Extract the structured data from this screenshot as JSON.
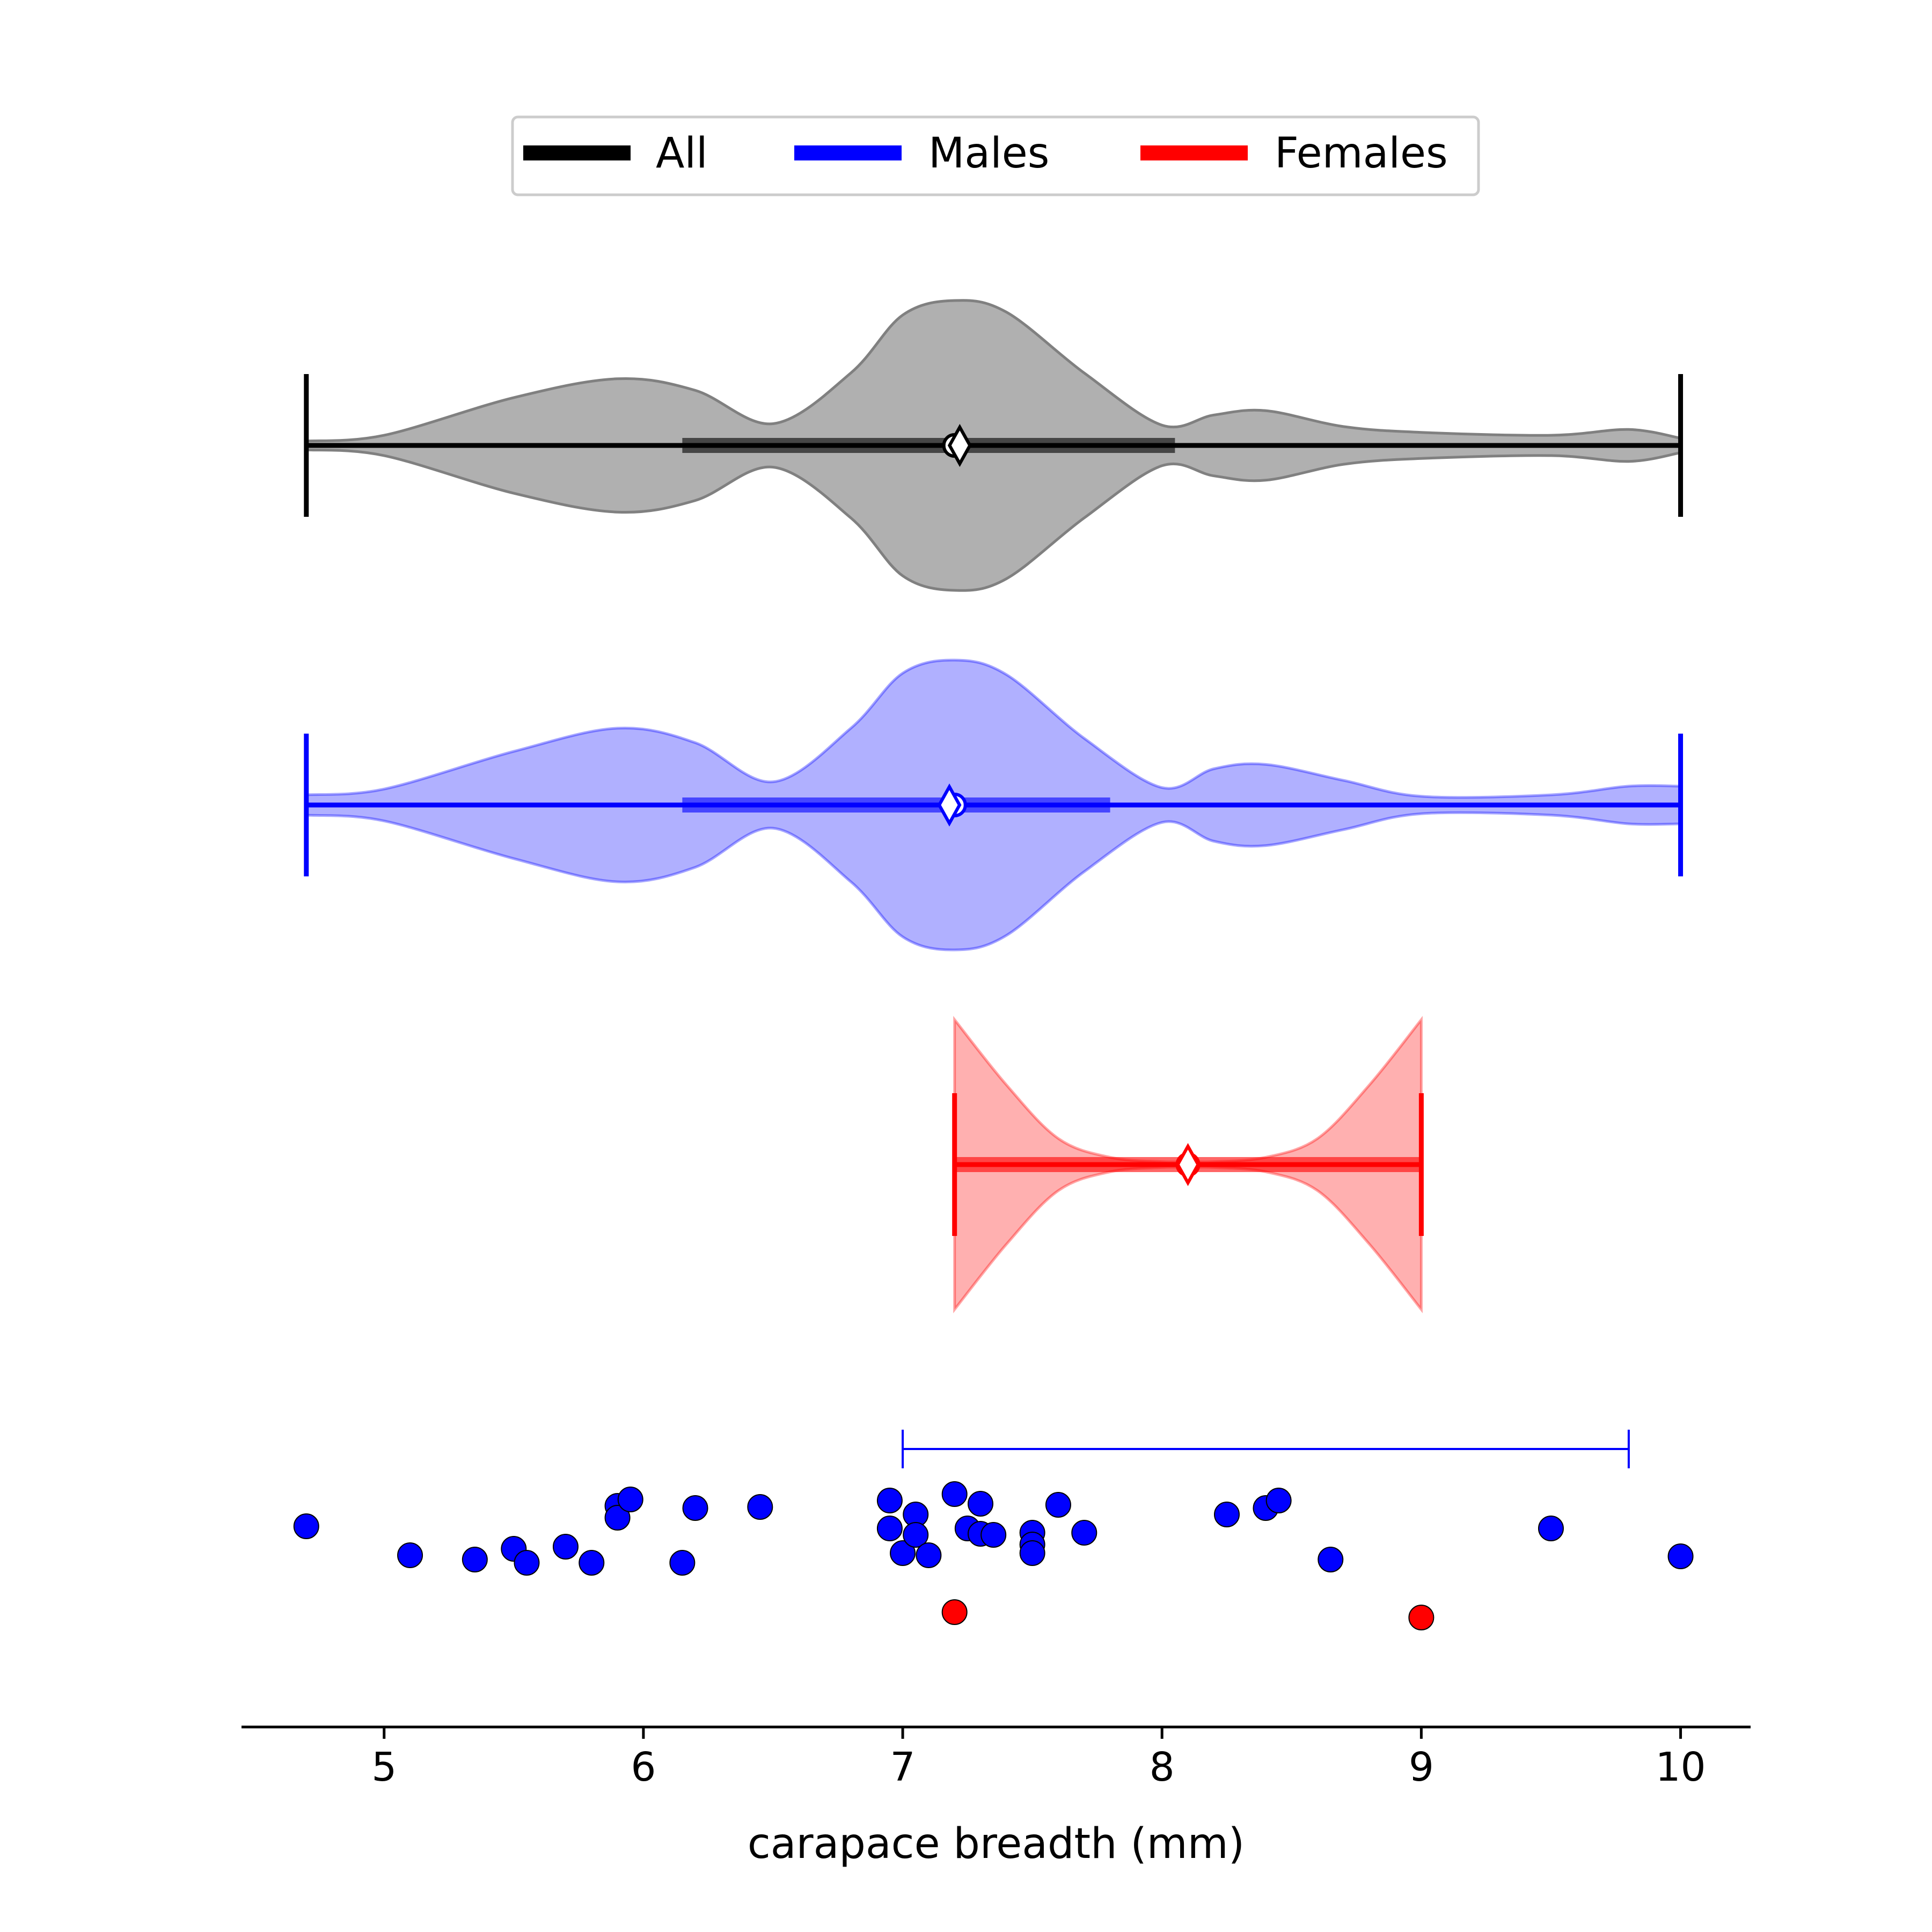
{
  "chart_data": {
    "type": "violin",
    "xlabel": "carapace breadth (mm)",
    "xlim": [
      4.45,
      10.27
    ],
    "xticks": [
      5,
      6,
      7,
      8,
      9,
      10
    ],
    "legend_position": "top-center",
    "legend": [
      {
        "label": "All",
        "color": "#000000"
      },
      {
        "label": "Males",
        "color": "#0000ff"
      },
      {
        "label": "Females",
        "color": "#ff0000"
      }
    ],
    "series": [
      {
        "name": "All",
        "color": "#000000",
        "fill": "#b0b0b0",
        "min": 4.7,
        "max": 10.0,
        "q1": 6.15,
        "q3": 8.05,
        "median": 7.2,
        "mean": 7.22,
        "density_x": [
          4.7,
          5.0,
          5.5,
          5.9,
          6.2,
          6.5,
          6.8,
          7.0,
          7.2,
          7.4,
          7.7,
          8.0,
          8.2,
          8.4,
          8.7,
          9.0,
          9.5,
          9.8,
          10.0
        ],
        "density_y": [
          0.03,
          0.07,
          0.33,
          0.46,
          0.38,
          0.15,
          0.5,
          0.9,
          1.0,
          0.92,
          0.5,
          0.14,
          0.21,
          0.24,
          0.13,
          0.09,
          0.07,
          0.11,
          0.05
        ]
      },
      {
        "name": "Males",
        "color": "#0000ff",
        "fill": "#b0b0ff",
        "min": 4.7,
        "max": 10.0,
        "q1": 6.15,
        "q3": 7.8,
        "median": 7.2,
        "mean": 7.18,
        "density_x": [
          4.7,
          5.0,
          5.5,
          5.9,
          6.2,
          6.5,
          6.8,
          7.0,
          7.2,
          7.4,
          7.7,
          8.0,
          8.2,
          8.4,
          8.7,
          9.0,
          9.5,
          9.8,
          10.0
        ],
        "density_y": [
          0.07,
          0.11,
          0.37,
          0.53,
          0.43,
          0.16,
          0.53,
          0.91,
          1.0,
          0.9,
          0.46,
          0.12,
          0.25,
          0.28,
          0.17,
          0.06,
          0.07,
          0.13,
          0.13
        ]
      },
      {
        "name": "Females",
        "color": "#ff0000",
        "fill": "#ffb0b0",
        "min": 7.2,
        "max": 9.0,
        "q1": 7.2,
        "q3": 9.0,
        "median": 8.1,
        "mean": 8.1,
        "density_x": [
          7.2,
          7.4,
          7.6,
          7.8,
          8.0,
          8.1,
          8.2,
          8.4,
          8.6,
          8.8,
          9.0
        ],
        "density_y": [
          1.0,
          0.55,
          0.18,
          0.05,
          0.02,
          0.02,
          0.02,
          0.05,
          0.18,
          0.55,
          1.0
        ]
      }
    ],
    "bracket": {
      "from": 7.0,
      "to": 9.8,
      "color": "#0000ff"
    },
    "points": {
      "males": [
        [
          4.7,
          0.42
        ],
        [
          5.1,
          0.69
        ],
        [
          5.35,
          0.73
        ],
        [
          5.5,
          0.63
        ],
        [
          5.55,
          0.76
        ],
        [
          5.7,
          0.61
        ],
        [
          5.8,
          0.76
        ],
        [
          5.9,
          0.23
        ],
        [
          5.9,
          0.34
        ],
        [
          5.95,
          0.17
        ],
        [
          6.15,
          0.76
        ],
        [
          6.2,
          0.25
        ],
        [
          6.45,
          0.24
        ],
        [
          6.95,
          0.18
        ],
        [
          6.95,
          0.44
        ],
        [
          7.0,
          0.67
        ],
        [
          7.05,
          0.31
        ],
        [
          7.05,
          0.5
        ],
        [
          7.1,
          0.69
        ],
        [
          7.2,
          0.12
        ],
        [
          7.25,
          0.44
        ],
        [
          7.3,
          0.21
        ],
        [
          7.3,
          0.49
        ],
        [
          7.35,
          0.5
        ],
        [
          7.5,
          0.48
        ],
        [
          7.5,
          0.59
        ],
        [
          7.5,
          0.67
        ],
        [
          7.6,
          0.22
        ],
        [
          7.7,
          0.48
        ],
        [
          8.25,
          0.31
        ],
        [
          8.4,
          0.25
        ],
        [
          8.45,
          0.18
        ],
        [
          8.65,
          0.73
        ],
        [
          9.5,
          0.44
        ],
        [
          10.0,
          0.7
        ]
      ],
      "females": [
        [
          7.2,
          1.22
        ],
        [
          9.0,
          1.27
        ]
      ],
      "male_color": "#0000ff",
      "female_color": "#ff0000"
    }
  }
}
